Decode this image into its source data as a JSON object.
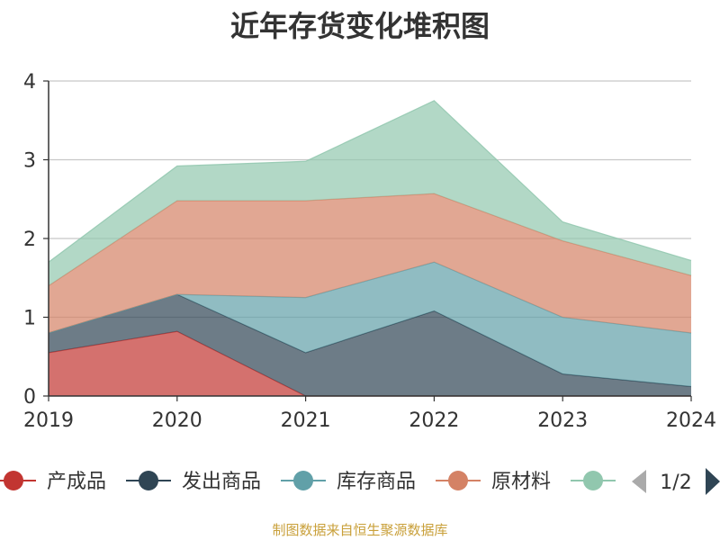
{
  "chart_data": {
    "type": "area",
    "title": "近年存货变化堆积图",
    "ylabel": "",
    "x": [
      "2019",
      "2020",
      "2021",
      "2022",
      "2023",
      "2024"
    ],
    "ylim": [
      0,
      4
    ],
    "yticks": [
      "0",
      "1",
      "2",
      "3",
      "4"
    ],
    "stacked": true,
    "grid": true,
    "legend_position": "bottom",
    "series": [
      {
        "name": "产成品",
        "color": "#c23531",
        "values": [
          0.55,
          0.82,
          0.0,
          0.0,
          0.0,
          0.0
        ]
      },
      {
        "name": "发出商品",
        "color": "#2f4554",
        "values": [
          0.25,
          0.47,
          0.55,
          1.08,
          0.28,
          0.12
        ]
      },
      {
        "name": "库存商品",
        "color": "#61a0a8",
        "values": [
          0.0,
          0.0,
          0.7,
          0.62,
          0.72,
          0.68
        ]
      },
      {
        "name": "原材料",
        "color": "#d48265",
        "values": [
          0.6,
          1.19,
          1.23,
          0.87,
          0.97,
          0.73
        ]
      },
      {
        "name": "",
        "color": "#91c7ae",
        "values": [
          0.3,
          0.44,
          0.5,
          1.18,
          0.24,
          0.19
        ]
      }
    ]
  },
  "legend": {
    "items": [
      "产成品",
      "发出商品",
      "库存商品",
      "原材料"
    ],
    "page": "1/2"
  },
  "footer": "制图数据来自恒生聚源数据库"
}
